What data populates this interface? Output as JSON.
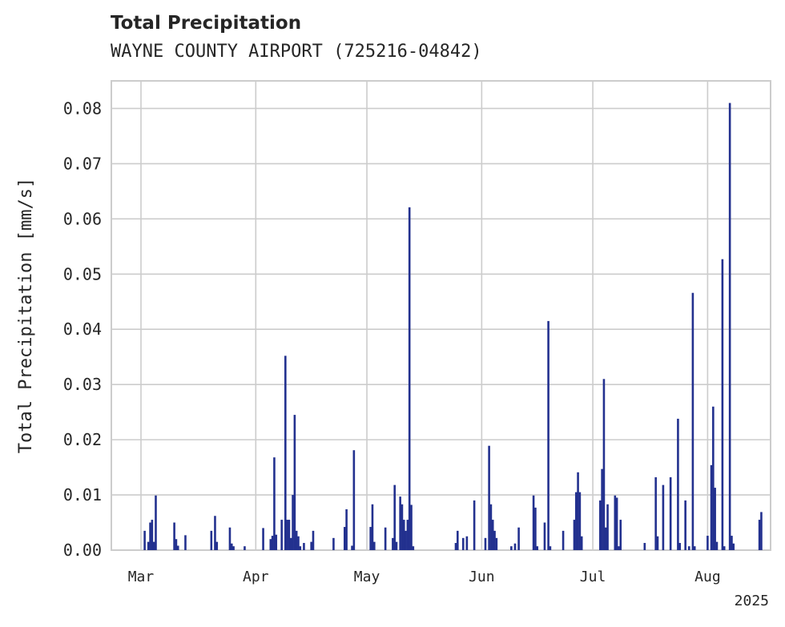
{
  "chart_data": {
    "type": "bar",
    "title": "Total Precipitation",
    "subtitle": "WAYNE COUNTY AIRPORT (725216-04842)",
    "ylabel": "Total Precipitation [mm/s]",
    "xlabel": "",
    "ylim": [
      0,
      0.085
    ],
    "xlim": [
      "2025-02-21",
      "2025-08-18"
    ],
    "grid": true,
    "bar_color": "#23318f",
    "yticks": [
      {
        "value": 0.0,
        "label": "0.00"
      },
      {
        "value": 0.01,
        "label": "0.01"
      },
      {
        "value": 0.02,
        "label": "0.02"
      },
      {
        "value": 0.03,
        "label": "0.03"
      },
      {
        "value": 0.04,
        "label": "0.04"
      },
      {
        "value": 0.05,
        "label": "0.05"
      },
      {
        "value": 0.06,
        "label": "0.06"
      },
      {
        "value": 0.07,
        "label": "0.07"
      },
      {
        "value": 0.08,
        "label": "0.08"
      }
    ],
    "xticks": [
      {
        "date": "2025-03-01",
        "label": "Mar"
      },
      {
        "date": "2025-04-01",
        "label": "Apr"
      },
      {
        "date": "2025-05-01",
        "label": "May"
      },
      {
        "date": "2025-06-01",
        "label": "Jun"
      },
      {
        "date": "2025-07-01",
        "label": "Jul"
      },
      {
        "date": "2025-08-01",
        "label": "Aug"
      }
    ],
    "year_label": "2025",
    "points": [
      {
        "date": "2025-03-02",
        "value": 0.0035
      },
      {
        "date": "2025-03-03",
        "value": 0.0015
      },
      {
        "date": "2025-03-03T12:00",
        "value": 0.005
      },
      {
        "date": "2025-03-04",
        "value": 0.0055
      },
      {
        "date": "2025-03-04T12:00",
        "value": 0.0015
      },
      {
        "date": "2025-03-05",
        "value": 0.0099
      },
      {
        "date": "2025-03-10",
        "value": 0.005
      },
      {
        "date": "2025-03-10T12:00",
        "value": 0.002
      },
      {
        "date": "2025-03-11",
        "value": 0.0008
      },
      {
        "date": "2025-03-13",
        "value": 0.0027
      },
      {
        "date": "2025-03-20",
        "value": 0.0035
      },
      {
        "date": "2025-03-21",
        "value": 0.0062
      },
      {
        "date": "2025-03-21T12:00",
        "value": 0.0015
      },
      {
        "date": "2025-03-25",
        "value": 0.0041
      },
      {
        "date": "2025-03-25T12:00",
        "value": 0.0012
      },
      {
        "date": "2025-03-26",
        "value": 0.0007
      },
      {
        "date": "2025-03-29",
        "value": 0.0007
      },
      {
        "date": "2025-04-03",
        "value": 0.004
      },
      {
        "date": "2025-04-05",
        "value": 0.002
      },
      {
        "date": "2025-04-05T12:00",
        "value": 0.0026
      },
      {
        "date": "2025-04-06",
        "value": 0.0168
      },
      {
        "date": "2025-04-06T12:00",
        "value": 0.0028
      },
      {
        "date": "2025-04-08",
        "value": 0.0055
      },
      {
        "date": "2025-04-09",
        "value": 0.0352
      },
      {
        "date": "2025-04-09T12:00",
        "value": 0.0055
      },
      {
        "date": "2025-04-10",
        "value": 0.0055
      },
      {
        "date": "2025-04-10T12:00",
        "value": 0.0022
      },
      {
        "date": "2025-04-11",
        "value": 0.01
      },
      {
        "date": "2025-04-11T12:00",
        "value": 0.0245
      },
      {
        "date": "2025-04-12",
        "value": 0.0035
      },
      {
        "date": "2025-04-12T12:00",
        "value": 0.0025
      },
      {
        "date": "2025-04-13",
        "value": 0.0007
      },
      {
        "date": "2025-04-14",
        "value": 0.0013
      },
      {
        "date": "2025-04-16",
        "value": 0.0015
      },
      {
        "date": "2025-04-16T12:00",
        "value": 0.0035
      },
      {
        "date": "2025-04-22",
        "value": 0.0022
      },
      {
        "date": "2025-04-25",
        "value": 0.0042
      },
      {
        "date": "2025-04-25T12:00",
        "value": 0.0074
      },
      {
        "date": "2025-04-27",
        "value": 0.0008
      },
      {
        "date": "2025-04-27T12:00",
        "value": 0.0181
      },
      {
        "date": "2025-05-02",
        "value": 0.0042
      },
      {
        "date": "2025-05-02T12:00",
        "value": 0.0083
      },
      {
        "date": "2025-05-03",
        "value": 0.0015
      },
      {
        "date": "2025-05-06",
        "value": 0.0041
      },
      {
        "date": "2025-05-08",
        "value": 0.0022
      },
      {
        "date": "2025-05-08T12:00",
        "value": 0.0118
      },
      {
        "date": "2025-05-09",
        "value": 0.0015
      },
      {
        "date": "2025-05-10",
        "value": 0.0097
      },
      {
        "date": "2025-05-10T12:00",
        "value": 0.0083
      },
      {
        "date": "2025-05-11",
        "value": 0.0055
      },
      {
        "date": "2025-05-11T12:00",
        "value": 0.0035
      },
      {
        "date": "2025-05-12",
        "value": 0.0055
      },
      {
        "date": "2025-05-12T12:00",
        "value": 0.0621
      },
      {
        "date": "2025-05-13",
        "value": 0.0082
      },
      {
        "date": "2025-05-13T12:00",
        "value": 0.0007
      },
      {
        "date": "2025-05-25",
        "value": 0.0013
      },
      {
        "date": "2025-05-25T12:00",
        "value": 0.0035
      },
      {
        "date": "2025-05-27",
        "value": 0.0022
      },
      {
        "date": "2025-05-28",
        "value": 0.0025
      },
      {
        "date": "2025-05-30",
        "value": 0.009
      },
      {
        "date": "2025-06-02",
        "value": 0.0022
      },
      {
        "date": "2025-06-03",
        "value": 0.0189
      },
      {
        "date": "2025-06-03T12:00",
        "value": 0.0083
      },
      {
        "date": "2025-06-04",
        "value": 0.0055
      },
      {
        "date": "2025-06-04T12:00",
        "value": 0.0035
      },
      {
        "date": "2025-06-05",
        "value": 0.0022
      },
      {
        "date": "2025-06-09",
        "value": 0.0007
      },
      {
        "date": "2025-06-10",
        "value": 0.0012
      },
      {
        "date": "2025-06-11",
        "value": 0.0041
      },
      {
        "date": "2025-06-15",
        "value": 0.0099
      },
      {
        "date": "2025-06-15T12:00",
        "value": 0.0077
      },
      {
        "date": "2025-06-16",
        "value": 0.0007
      },
      {
        "date": "2025-06-18",
        "value": 0.005
      },
      {
        "date": "2025-06-19",
        "value": 0.0415
      },
      {
        "date": "2025-06-19T12:00",
        "value": 0.0007
      },
      {
        "date": "2025-06-23",
        "value": 0.0035
      },
      {
        "date": "2025-06-26",
        "value": 0.0055
      },
      {
        "date": "2025-06-26T12:00",
        "value": 0.0105
      },
      {
        "date": "2025-06-27",
        "value": 0.0141
      },
      {
        "date": "2025-06-27T12:00",
        "value": 0.0105
      },
      {
        "date": "2025-06-28",
        "value": 0.0025
      },
      {
        "date": "2025-07-03",
        "value": 0.009
      },
      {
        "date": "2025-07-03T12:00",
        "value": 0.0147
      },
      {
        "date": "2025-07-04",
        "value": 0.031
      },
      {
        "date": "2025-07-04T12:00",
        "value": 0.0041
      },
      {
        "date": "2025-07-05",
        "value": 0.0083
      },
      {
        "date": "2025-07-07",
        "value": 0.0099
      },
      {
        "date": "2025-07-07T12:00",
        "value": 0.0095
      },
      {
        "date": "2025-07-08",
        "value": 0.0007
      },
      {
        "date": "2025-07-08T12:00",
        "value": 0.0055
      },
      {
        "date": "2025-07-15",
        "value": 0.0013
      },
      {
        "date": "2025-07-18",
        "value": 0.0132
      },
      {
        "date": "2025-07-18T12:00",
        "value": 0.0025
      },
      {
        "date": "2025-07-20",
        "value": 0.0118
      },
      {
        "date": "2025-07-22",
        "value": 0.0132
      },
      {
        "date": "2025-07-24",
        "value": 0.0238
      },
      {
        "date": "2025-07-24T12:00",
        "value": 0.0013
      },
      {
        "date": "2025-07-26",
        "value": 0.009
      },
      {
        "date": "2025-07-27",
        "value": 0.0007
      },
      {
        "date": "2025-07-28",
        "value": 0.0466
      },
      {
        "date": "2025-07-28T12:00",
        "value": 0.0007
      },
      {
        "date": "2025-08-01",
        "value": 0.0026
      },
      {
        "date": "2025-08-02",
        "value": 0.0154
      },
      {
        "date": "2025-08-02T12:00",
        "value": 0.026
      },
      {
        "date": "2025-08-03",
        "value": 0.0113
      },
      {
        "date": "2025-08-03T12:00",
        "value": 0.0015
      },
      {
        "date": "2025-08-05",
        "value": 0.0527
      },
      {
        "date": "2025-08-05T12:00",
        "value": 0.0007
      },
      {
        "date": "2025-08-07",
        "value": 0.081
      },
      {
        "date": "2025-08-07T12:00",
        "value": 0.0026
      },
      {
        "date": "2025-08-08",
        "value": 0.0012
      },
      {
        "date": "2025-08-15",
        "value": 0.0055
      },
      {
        "date": "2025-08-15T12:00",
        "value": 0.0069
      }
    ]
  }
}
